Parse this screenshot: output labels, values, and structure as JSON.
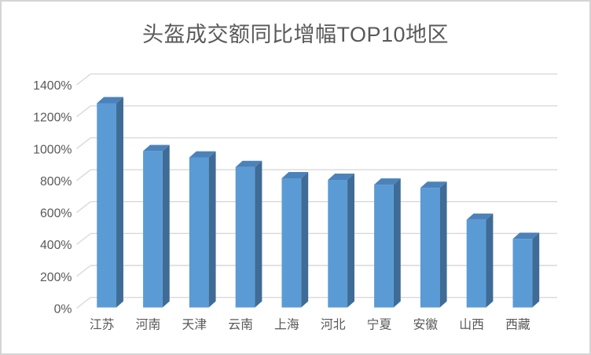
{
  "chart_data": {
    "type": "bar",
    "variant": "3d-clustered-column",
    "title": "头盔成交额同比增幅TOP10地区",
    "categories": [
      "江苏",
      "河南",
      "天津",
      "云南",
      "上海",
      "河北",
      "宁夏",
      "安徽",
      "山西",
      "西藏"
    ],
    "values": [
      1280,
      980,
      940,
      880,
      810,
      800,
      770,
      750,
      550,
      430
    ],
    "unit": "%",
    "xlabel": "",
    "ylabel": "",
    "ylim": [
      0,
      1400
    ],
    "ytick_step": 200,
    "ytick_labels": [
      "0%",
      "200%",
      "400%",
      "600%",
      "800%",
      "1000%",
      "1200%",
      "1400%"
    ],
    "grid": true,
    "legend_position": "none",
    "colors": {
      "bar_front": "#5B9BD5",
      "bar_top": "#4C82BA",
      "bar_side": "#3F6C96",
      "gridline": "#D9D9D9",
      "text": "#595959",
      "background": "#FFFFFF",
      "border": "#D4D4D4"
    }
  }
}
